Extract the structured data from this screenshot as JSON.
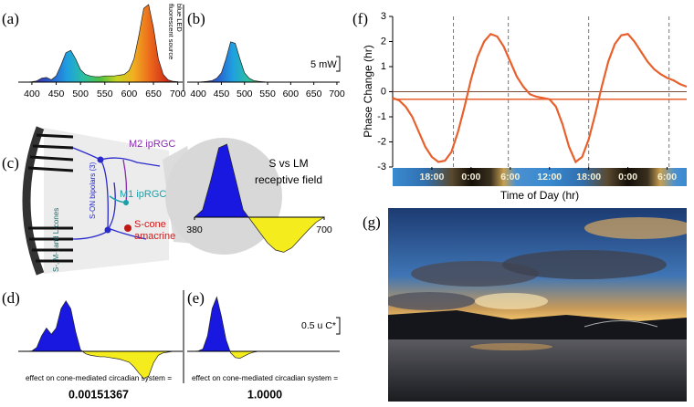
{
  "chart_data": [
    {
      "type": "spectrum",
      "label": "(a)",
      "annotations": [
        "fluorescent source",
        "blue LED"
      ],
      "x": [
        380,
        390,
        400,
        410,
        420,
        430,
        440,
        450,
        460,
        470,
        480,
        490,
        500,
        510,
        520,
        530,
        540,
        550,
        560,
        570,
        580,
        590,
        600,
        610,
        620,
        630,
        640,
        650,
        660,
        670,
        680,
        690,
        700
      ],
      "values": [
        0,
        0,
        0.5,
        1.5,
        5,
        6,
        3,
        8,
        22,
        38,
        41,
        30,
        16,
        10,
        8,
        7,
        7,
        8,
        8,
        8,
        9,
        10,
        15,
        30,
        60,
        95,
        100,
        70,
        30,
        10,
        3,
        1,
        0.5
      ],
      "xlim": [
        372,
        710
      ],
      "xticks": [
        400,
        450,
        500,
        550,
        600,
        650,
        700
      ]
    },
    {
      "type": "spectrum",
      "label": "(b)",
      "scale_label": "5 mW",
      "x": [
        380,
        390,
        400,
        410,
        420,
        430,
        440,
        450,
        460,
        470,
        480,
        490,
        500,
        510,
        520,
        530,
        540,
        550,
        560,
        570,
        580,
        590,
        600,
        610,
        620,
        630,
        640,
        650,
        660,
        670,
        680,
        690,
        700
      ],
      "values": [
        0,
        0,
        0,
        0.5,
        1,
        2,
        5,
        12,
        30,
        52,
        50,
        30,
        12,
        5,
        2,
        1,
        0.5,
        0,
        0,
        0,
        0,
        0,
        0,
        0,
        0,
        0,
        0,
        0,
        0,
        0,
        0,
        0,
        0
      ],
      "xlim": [
        376,
        706
      ],
      "xticks": [
        400,
        450,
        500,
        550,
        600,
        650,
        700
      ]
    },
    {
      "type": "difference",
      "label": "(d)",
      "pos_color": "#1818e0",
      "neg_color": "#f4ec1c",
      "caption": "effect on cone-mediated circadian system =",
      "result": "0.00151367",
      "x": [
        380,
        390,
        400,
        410,
        420,
        430,
        440,
        450,
        460,
        470,
        480,
        490,
        500,
        510,
        520,
        530,
        540,
        550,
        560,
        570,
        580,
        590,
        600,
        610,
        620,
        630,
        640,
        650,
        660,
        670,
        680,
        690,
        700
      ],
      "values": [
        0,
        0,
        0.5,
        5,
        20,
        30,
        22,
        30,
        55,
        65,
        55,
        25,
        2,
        -3,
        -5,
        -6,
        -7,
        -7,
        -8,
        -9,
        -10,
        -12,
        -14,
        -20,
        -28,
        -35,
        -32,
        -15,
        -5,
        -2,
        -1,
        0,
        0
      ],
      "xlim": [
        372,
        710
      ]
    },
    {
      "type": "difference",
      "label": "(e)",
      "pos_color": "#1818e0",
      "neg_color": "#f4ec1c",
      "scale_label": "0.5 u C*",
      "caption": "effect on cone-mediated circadian system =",
      "result": "1.0000",
      "x": [
        380,
        390,
        400,
        410,
        420,
        430,
        440,
        450,
        460,
        470,
        480,
        490,
        500,
        510,
        520,
        530,
        540,
        550,
        560,
        570,
        580,
        590,
        600,
        610,
        620,
        630,
        640,
        650,
        660,
        670,
        680,
        690,
        700
      ],
      "values": [
        0,
        0,
        0.5,
        3,
        20,
        55,
        70,
        45,
        15,
        -2,
        -8,
        -9,
        -6,
        -3,
        -1,
        0,
        0,
        0,
        0,
        0,
        0,
        0,
        0,
        0,
        0,
        0,
        0,
        0,
        0,
        0,
        0,
        0,
        0
      ],
      "xlim": [
        376,
        706
      ]
    },
    {
      "type": "difference",
      "title_lines": [
        "S vs LM",
        "receptive field"
      ],
      "pos_color": "#1818e0",
      "neg_color": "#f4ec1c",
      "x": [
        380,
        400,
        420,
        440,
        460,
        480,
        500,
        520,
        540,
        560,
        580,
        600,
        620,
        640,
        660,
        680,
        700
      ],
      "values": [
        0,
        10,
        50,
        95,
        100,
        55,
        10,
        -5,
        -20,
        -35,
        -45,
        -48,
        -42,
        -30,
        -18,
        -7,
        0
      ],
      "xlim": [
        380,
        700
      ],
      "xticks": [
        380,
        700
      ]
    },
    {
      "type": "line",
      "label": "(f)",
      "ylabel": "Phase Change (hr)",
      "xlabel": "Time of Day (hr)",
      "color": "#e8602c",
      "x": [
        0,
        1,
        2,
        3,
        4,
        5,
        6,
        7,
        8,
        9,
        10,
        11,
        12,
        13,
        14,
        15,
        16,
        17,
        18,
        19,
        20,
        21,
        22,
        23,
        24,
        25,
        26,
        27,
        28,
        29,
        30,
        31,
        32,
        33,
        34,
        35,
        36,
        37,
        38,
        39,
        40,
        41,
        42,
        43,
        44,
        45
      ],
      "values": [
        -0.25,
        -0.35,
        -0.6,
        -1.0,
        -1.6,
        -2.2,
        -2.6,
        -2.8,
        -2.75,
        -2.4,
        -1.6,
        -0.6,
        0.5,
        1.4,
        2.0,
        2.3,
        2.2,
        1.8,
        1.2,
        0.6,
        0.2,
        -0.1,
        -0.2,
        -0.25,
        -0.3,
        -0.6,
        -1.3,
        -2.2,
        -2.8,
        -2.6,
        -1.9,
        -0.9,
        0.2,
        1.2,
        1.9,
        2.25,
        2.3,
        2.0,
        1.6,
        1.2,
        0.9,
        0.7,
        0.55,
        0.45,
        0.3,
        0.2
      ],
      "xlim": [
        0,
        45
      ],
      "ylim": [
        -3,
        3
      ],
      "yticks": [
        -3,
        -2,
        -1,
        0,
        1,
        2,
        3
      ],
      "xticks": [
        {
          "value": 6,
          "label": "18:00"
        },
        {
          "value": 12,
          "label": "0:00"
        },
        {
          "value": 18,
          "label": "6:00"
        },
        {
          "value": 24,
          "label": "12:00"
        },
        {
          "value": 30,
          "label": "18:00"
        },
        {
          "value": 36,
          "label": "0:00"
        },
        {
          "value": 42,
          "label": "6:00"
        }
      ],
      "vlines": [
        9.3,
        17.7,
        30,
        42.3
      ],
      "hlines": [
        0,
        -0.3
      ],
      "hline_colors": [
        "#7a4a3a",
        "#e8602c"
      ]
    }
  ],
  "diagram": {
    "label": "(c)",
    "labels": [
      "M2 ipRGC",
      "S-ON bipolars (3)",
      "S-, M-, and L-cones",
      "M1 ipRGC",
      "S-cone",
      "amacrine"
    ]
  },
  "photo": {
    "label": "(g)"
  }
}
